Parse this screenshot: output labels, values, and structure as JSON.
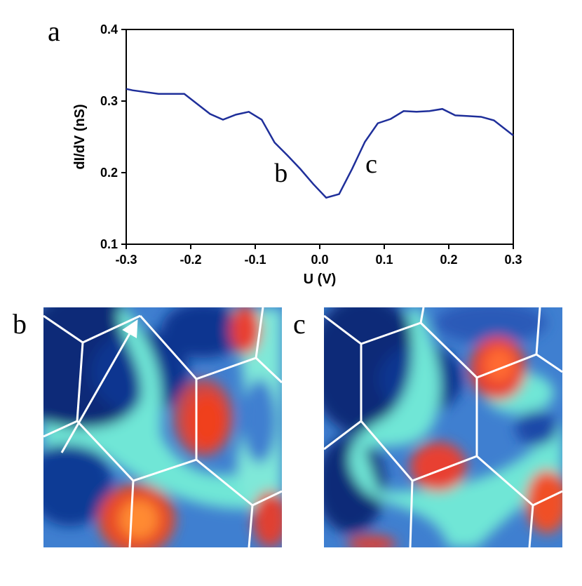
{
  "chart_data": {
    "type": "line",
    "panel_label": "a",
    "xlabel": "U (V)",
    "ylabel": "dI/dV (nS)",
    "x": [
      -0.3,
      -0.29,
      -0.25,
      -0.21,
      -0.17,
      -0.15,
      -0.13,
      -0.11,
      -0.09,
      -0.07,
      -0.05,
      -0.03,
      -0.01,
      0.01,
      0.03,
      0.05,
      0.07,
      0.09,
      0.11,
      0.13,
      0.15,
      0.17,
      0.19,
      0.21,
      0.23,
      0.25,
      0.27,
      0.3
    ],
    "series": [
      {
        "color": "#1f2f9a",
        "values": [
          0.317,
          0.315,
          0.31,
          0.31,
          0.282,
          0.274,
          0.281,
          0.285,
          0.274,
          0.242,
          0.224,
          0.205,
          0.184,
          0.165,
          0.17,
          0.205,
          0.243,
          0.269,
          0.275,
          0.286,
          0.285,
          0.286,
          0.289,
          0.28,
          0.279,
          0.278,
          0.273,
          0.252
        ]
      }
    ],
    "xlim": [
      -0.3,
      0.3
    ],
    "xticks": [
      -0.3,
      -0.2,
      -0.1,
      {
        "value": 0,
        "label": "0.0"
      },
      0.1,
      0.2,
      0.3
    ],
    "ylim": [
      0.1,
      0.4
    ],
    "yticks": [
      0.1,
      0.2,
      0.3,
      0.4
    ],
    "grid": false,
    "annotations": [
      {
        "text": "b",
        "x": -0.06
      },
      {
        "text": "c",
        "x": 0.08
      }
    ]
  },
  "images": [
    {
      "label": "b"
    },
    {
      "label": "c"
    }
  ]
}
